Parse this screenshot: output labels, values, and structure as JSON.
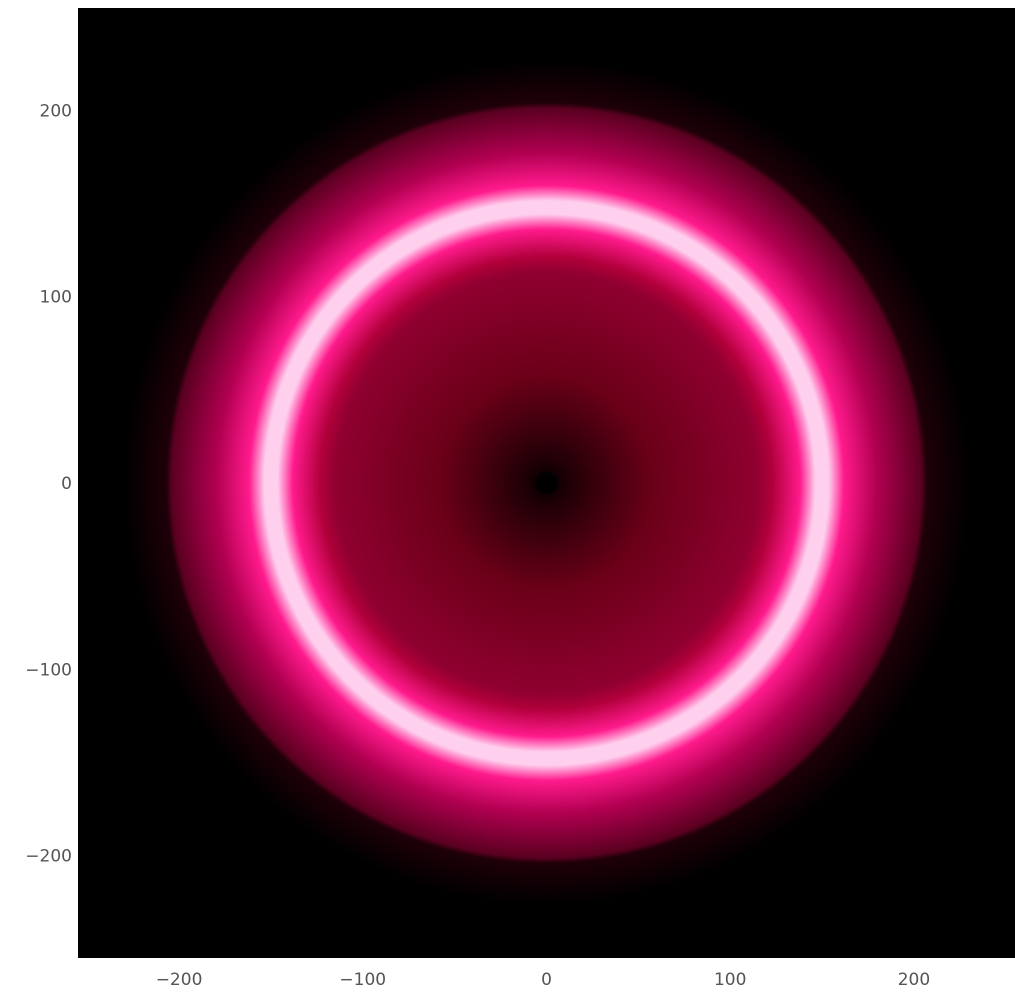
{
  "chart_data": {
    "type": "heatmap",
    "title": "",
    "xlabel": "",
    "ylabel": "",
    "xlim": [
      -255,
      255
    ],
    "ylim": [
      -255,
      255
    ],
    "x_ticks": [
      -200,
      -100,
      0,
      100,
      200
    ],
    "y_ticks": [
      200,
      100,
      0,
      -100,
      -200
    ],
    "x_tick_labels": [
      "−200",
      "−100",
      "0",
      "100",
      "200"
    ],
    "y_tick_labels": [
      "200",
      "100",
      "0",
      "−100",
      "−200"
    ],
    "grid": false,
    "legend": "none",
    "background": "#000000",
    "colormap": [
      "#000000",
      "#6a0018",
      "#b0003a",
      "#ff1a8c",
      "#ffd0ee"
    ],
    "field": {
      "shape": "radial ring",
      "center": [
        0,
        0
      ],
      "ring_radius": 150,
      "ring_width": 12,
      "glow_extent": 230,
      "interior": "gradient dark center to crimson near ring",
      "center_dot_radius": 6
    }
  }
}
